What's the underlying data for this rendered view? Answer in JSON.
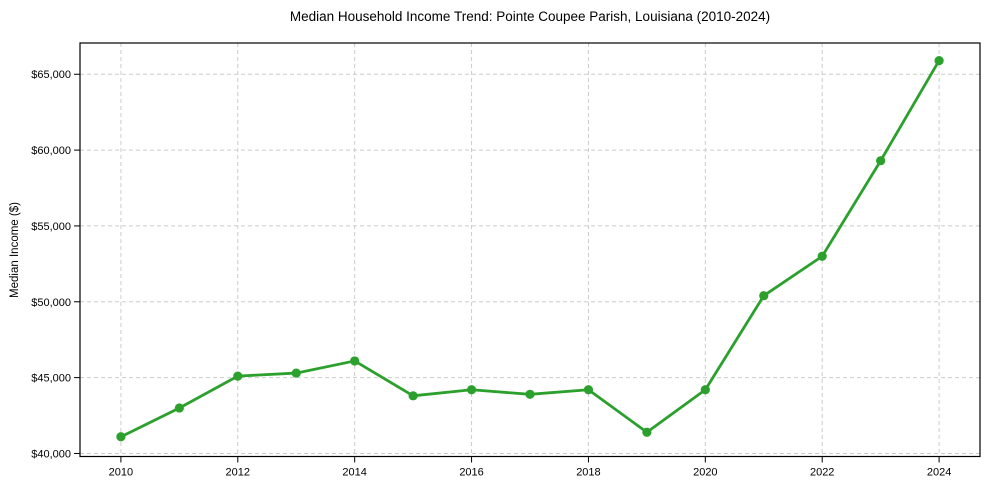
{
  "chart_data": {
    "type": "line",
    "title": "Median Household Income Trend: Pointe Coupee Parish, Louisiana (2010-2024)",
    "xlabel": "",
    "ylabel": "Median Income ($)",
    "series": [
      {
        "name": "Median household income",
        "x": [
          2010,
          2011,
          2012,
          2013,
          2014,
          2015,
          2016,
          2017,
          2018,
          2019,
          2020,
          2021,
          2022,
          2023,
          2024
        ],
        "values": [
          41100,
          43000,
          45100,
          45300,
          46100,
          43800,
          44200,
          43900,
          44200,
          41400,
          44200,
          50400,
          53000,
          59300,
          65900
        ]
      }
    ],
    "x_ticks": {
      "values": [
        2010,
        2012,
        2014,
        2016,
        2018,
        2020,
        2022,
        2024
      ],
      "labels": [
        "2010",
        "2012",
        "2014",
        "2016",
        "2018",
        "2020",
        "2022",
        "2024"
      ]
    },
    "y_ticks": {
      "values": [
        40000,
        45000,
        50000,
        55000,
        60000,
        65000
      ],
      "labels": [
        "$40,000",
        "$45,000",
        "$50,000",
        "$55,000",
        "$60,000",
        "$65,000"
      ]
    },
    "xlim": [
      2009.3,
      2024.7
    ],
    "ylim": [
      39800,
      67060
    ],
    "grid": true,
    "grid_style": "dashed",
    "legend": false,
    "colors": {
      "line": "#2ca02c",
      "marker": "#2ca02c",
      "grid": "#cccccc",
      "spine": "#000000",
      "text": "#000000",
      "background": "#ffffff"
    }
  }
}
